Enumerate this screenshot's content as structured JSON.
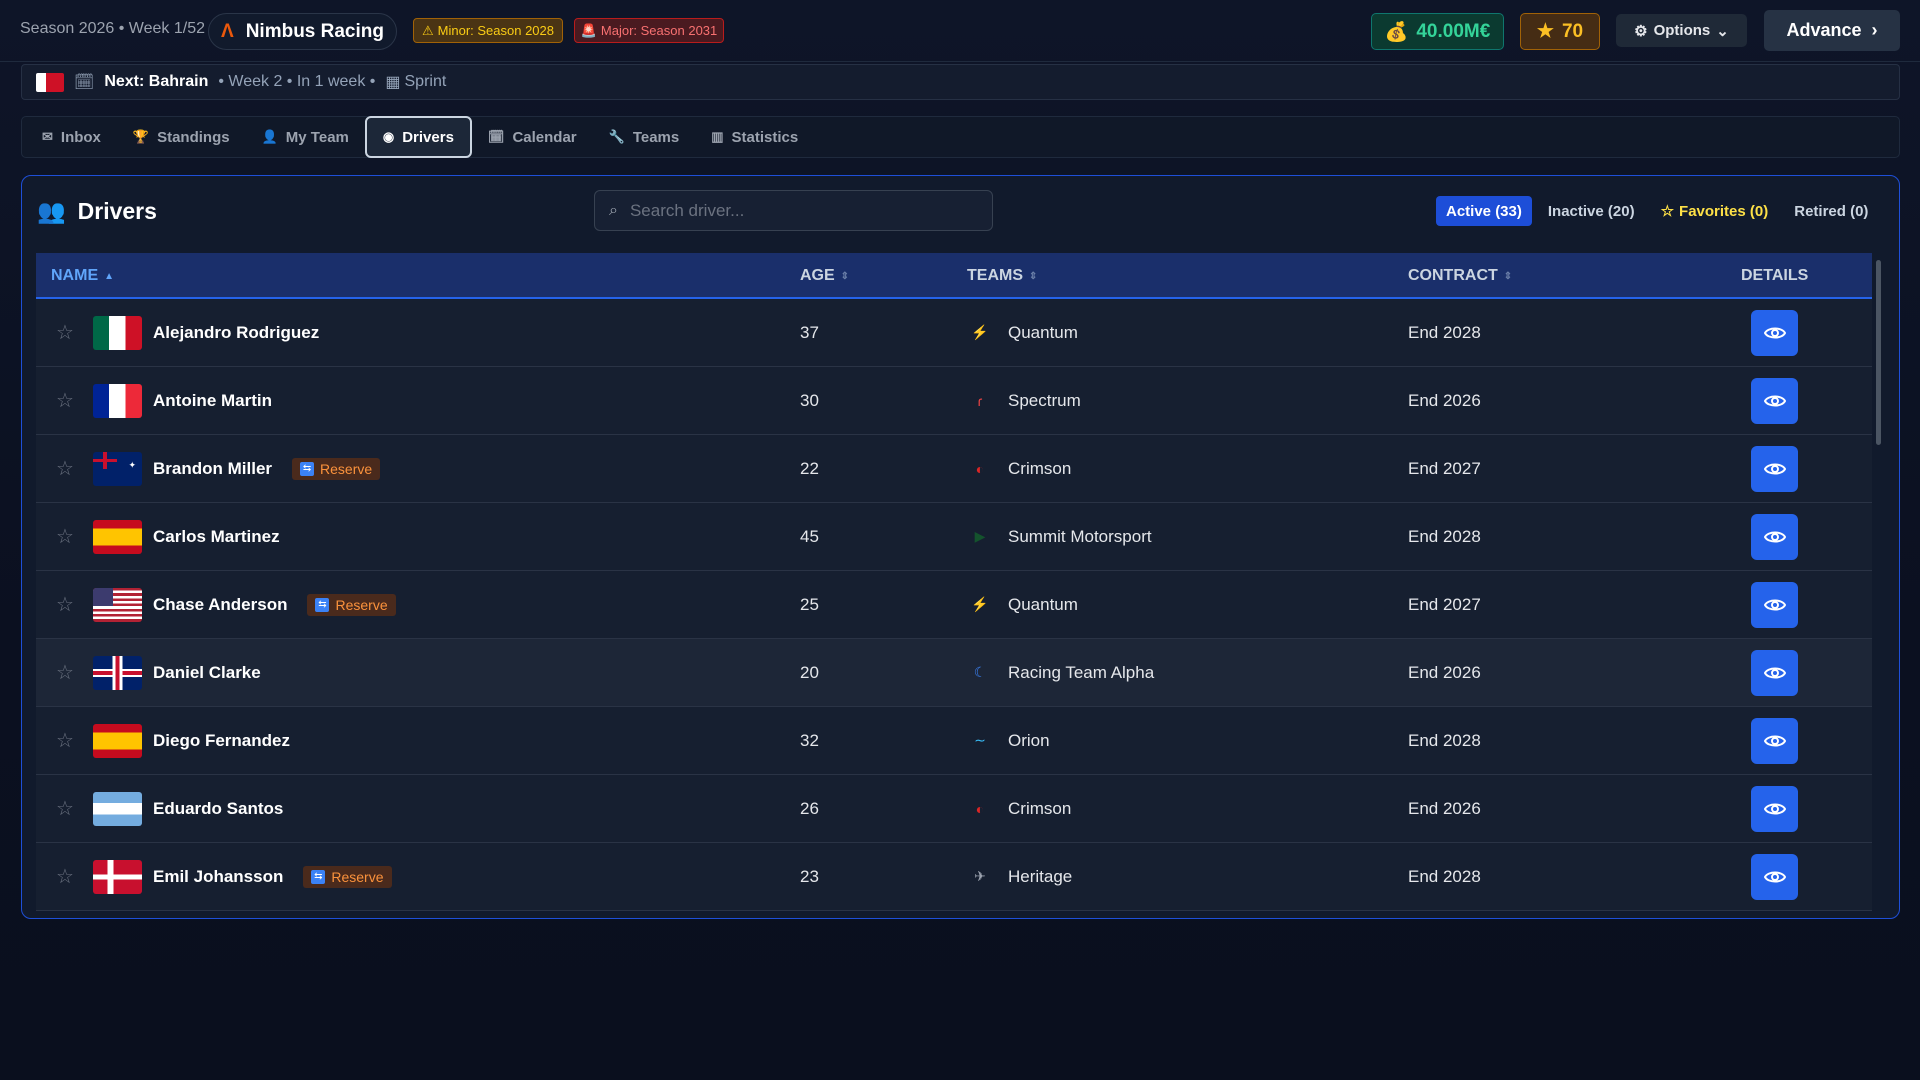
{
  "header": {
    "season": "Season 2026 • Week 1/52",
    "team": "Nimbus Racing",
    "minor": "Minor: Season 2028",
    "major": "Major: Season 2031",
    "money": "40.00M€",
    "stars": "70",
    "options": "Options",
    "advance": "Advance"
  },
  "next": {
    "label": "Next: Bahrain",
    "details": "• Week 2 • In 1 week •",
    "type": "Sprint"
  },
  "tabs": [
    {
      "label": "Inbox",
      "icon": "mail"
    },
    {
      "label": "Standings",
      "icon": "trophy"
    },
    {
      "label": "My Team",
      "icon": "users"
    },
    {
      "label": "Drivers",
      "icon": "eye",
      "active": true
    },
    {
      "label": "Calendar",
      "icon": "calendar"
    },
    {
      "label": "Teams",
      "icon": "wrench"
    },
    {
      "label": "Statistics",
      "icon": "bar-chart"
    }
  ],
  "panel": {
    "title": "Drivers",
    "search_placeholder": "Search driver...",
    "filters": [
      "Active (33)",
      "Inactive (20)",
      "Favorites (0)",
      "Retired (0)"
    ]
  },
  "table": {
    "columns": [
      "NAME",
      "AGE",
      "TEAMS",
      "CONTRACT",
      "DETAILS"
    ],
    "rows": [
      {
        "name": "Alejandro Rodriguez",
        "flag": "MX",
        "age": "37",
        "team": "Quantum",
        "contract": "End 2028",
        "reserve": ""
      },
      {
        "name": "Antoine Martin",
        "flag": "FR",
        "age": "30",
        "team": "Spectrum",
        "contract": "End 2026",
        "reserve": ""
      },
      {
        "name": "Brandon Miller",
        "flag": "AU",
        "age": "22",
        "team": "Crimson",
        "contract": "End 2027",
        "reserve": "Reserve"
      },
      {
        "name": "Carlos Martinez",
        "flag": "ES",
        "age": "45",
        "team": "Summit Motorsport",
        "contract": "End 2028",
        "reserve": ""
      },
      {
        "name": "Chase Anderson",
        "flag": "US",
        "age": "25",
        "team": "Quantum",
        "contract": "End 2027",
        "reserve": "Reserve"
      },
      {
        "name": "Daniel Clarke",
        "flag": "GB",
        "age": "20",
        "team": "Racing Team Alpha",
        "contract": "End 2026",
        "reserve": ""
      },
      {
        "name": "Diego Fernandez",
        "flag": "ES",
        "age": "32",
        "team": "Orion",
        "contract": "End 2028",
        "reserve": ""
      },
      {
        "name": "Eduardo Santos",
        "flag": "AR",
        "age": "26",
        "team": "Crimson",
        "contract": "End 2026",
        "reserve": ""
      },
      {
        "name": "Emil Johansson",
        "flag": "DK",
        "age": "23",
        "team": "Heritage",
        "contract": "End 2028",
        "reserve": "Reserve"
      }
    ]
  },
  "colors": {
    "accent": "#2563eb",
    "money": "#34d399",
    "reserve": "#fb923c"
  }
}
